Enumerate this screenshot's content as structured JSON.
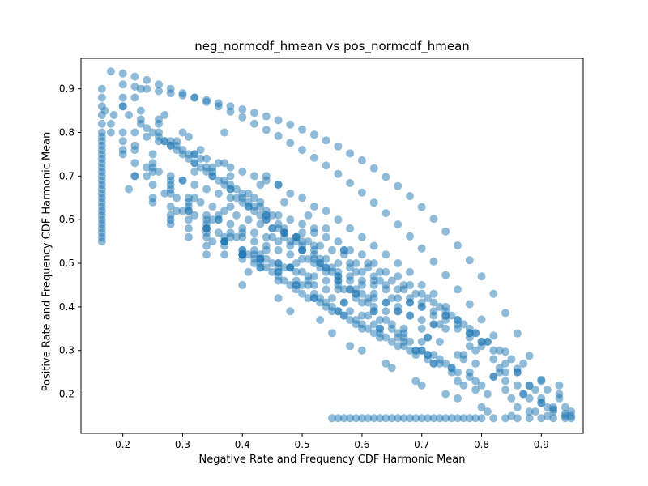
{
  "chart_data": {
    "type": "scatter",
    "title": "neg_normcdf_hmean vs pos_normcdf_hmean",
    "xlabel": "Negative Rate and Frequency CDF Harmonic Mean",
    "ylabel": "Positive Rate and Frequency CDF Harmonic Mean",
    "xlim": [
      0.13,
      0.97
    ],
    "ylim": [
      0.11,
      0.97
    ],
    "xticks": [
      0.2,
      0.3,
      0.4,
      0.5,
      0.6,
      0.7,
      0.8,
      0.9
    ],
    "yticks": [
      0.2,
      0.3,
      0.4,
      0.5,
      0.6,
      0.7,
      0.8,
      0.9
    ],
    "grid": false,
    "marker_color": "#1f77b4",
    "marker_alpha": 0.5,
    "x": [
      0.165,
      0.165,
      0.165,
      0.165,
      0.165,
      0.165,
      0.165,
      0.165,
      0.165,
      0.165,
      0.165,
      0.165,
      0.165,
      0.165,
      0.165,
      0.165,
      0.165,
      0.165,
      0.165,
      0.165,
      0.165,
      0.165,
      0.165,
      0.165,
      0.165,
      0.165,
      0.165,
      0.165,
      0.165,
      0.165,
      0.165,
      0.18,
      0.2,
      0.22,
      0.24,
      0.26,
      0.28,
      0.3,
      0.32,
      0.34,
      0.36,
      0.38,
      0.4,
      0.42,
      0.44,
      0.46,
      0.48,
      0.5,
      0.52,
      0.54,
      0.56,
      0.58,
      0.6,
      0.62,
      0.64,
      0.66,
      0.68,
      0.7,
      0.72,
      0.74,
      0.76,
      0.78,
      0.8,
      0.82,
      0.84,
      0.86,
      0.88,
      0.9,
      0.92,
      0.94,
      0.95,
      0.55,
      0.56,
      0.57,
      0.58,
      0.59,
      0.6,
      0.61,
      0.62,
      0.63,
      0.64,
      0.65,
      0.66,
      0.67,
      0.68,
      0.69,
      0.7,
      0.71,
      0.72,
      0.73,
      0.74,
      0.75,
      0.76,
      0.77,
      0.78,
      0.79,
      0.8,
      0.82,
      0.84,
      0.86,
      0.88,
      0.9,
      0.92,
      0.94,
      0.95,
      0.185,
      0.2,
      0.22,
      0.25,
      0.28,
      0.31,
      0.34,
      0.37,
      0.4,
      0.42,
      0.17,
      0.18,
      0.2,
      0.22,
      0.25,
      0.28,
      0.31,
      0.34,
      0.37,
      0.4,
      0.43,
      0.45,
      0.18,
      0.2,
      0.22,
      0.25,
      0.28,
      0.31,
      0.34,
      0.37,
      0.4,
      0.43,
      0.46,
      0.48,
      0.2,
      0.22,
      0.25,
      0.28,
      0.31,
      0.34,
      0.37,
      0.4,
      0.43,
      0.46,
      0.49,
      0.51,
      0.22,
      0.25,
      0.28,
      0.31,
      0.34,
      0.37,
      0.4,
      0.43,
      0.46,
      0.49,
      0.52,
      0.54,
      0.25,
      0.28,
      0.31,
      0.34,
      0.37,
      0.4,
      0.43,
      0.46,
      0.49,
      0.52,
      0.55,
      0.57,
      0.28,
      0.31,
      0.34,
      0.37,
      0.4,
      0.43,
      0.46,
      0.49,
      0.52,
      0.55,
      0.58,
      0.6,
      0.32,
      0.35,
      0.38,
      0.41,
      0.44,
      0.47,
      0.5,
      0.53,
      0.56,
      0.59,
      0.62,
      0.63,
      0.36,
      0.39,
      0.42,
      0.45,
      0.48,
      0.51,
      0.54,
      0.57,
      0.6,
      0.63,
      0.66,
      0.67,
      0.4,
      0.43,
      0.46,
      0.49,
      0.52,
      0.55,
      0.58,
      0.61,
      0.64,
      0.67,
      0.7,
      0.71,
      0.44,
      0.47,
      0.5,
      0.53,
      0.56,
      0.59,
      0.62,
      0.65,
      0.68,
      0.71,
      0.74,
      0.75,
      0.48,
      0.51,
      0.54,
      0.57,
      0.6,
      0.63,
      0.66,
      0.69,
      0.72,
      0.75,
      0.78,
      0.79,
      0.2,
      0.23,
      0.26,
      0.29,
      0.32,
      0.35,
      0.38,
      0.41,
      0.44,
      0.47,
      0.5,
      0.53,
      0.56,
      0.59,
      0.62,
      0.2,
      0.23,
      0.26,
      0.29,
      0.32,
      0.35,
      0.38,
      0.41,
      0.44,
      0.47,
      0.5,
      0.53,
      0.56,
      0.59,
      0.62,
      0.65,
      0.21,
      0.24,
      0.27,
      0.3,
      0.33,
      0.36,
      0.39,
      0.42,
      0.45,
      0.48,
      0.51,
      0.54,
      0.57,
      0.6,
      0.63,
      0.66,
      0.69,
      0.23,
      0.26,
      0.29,
      0.32,
      0.35,
      0.38,
      0.41,
      0.44,
      0.47,
      0.5,
      0.53,
      0.56,
      0.59,
      0.62,
      0.65,
      0.68,
      0.71,
      0.72,
      0.25,
      0.28,
      0.31,
      0.34,
      0.37,
      0.4,
      0.43,
      0.46,
      0.49,
      0.52,
      0.55,
      0.58,
      0.61,
      0.64,
      0.67,
      0.7,
      0.73,
      0.76,
      0.77,
      0.28,
      0.31,
      0.34,
      0.37,
      0.4,
      0.43,
      0.46,
      0.49,
      0.52,
      0.55,
      0.58,
      0.61,
      0.64,
      0.67,
      0.7,
      0.73,
      0.76,
      0.79,
      0.81,
      0.2,
      0.22,
      0.24,
      0.26,
      0.28,
      0.3,
      0.32,
      0.34,
      0.36,
      0.38,
      0.4,
      0.42,
      0.44,
      0.46,
      0.48,
      0.5,
      0.52,
      0.54,
      0.56,
      0.58,
      0.6,
      0.62,
      0.64,
      0.66,
      0.68,
      0.7,
      0.72,
      0.74,
      0.76,
      0.78,
      0.8,
      0.82,
      0.84,
      0.86,
      0.88,
      0.9,
      0.22,
      0.24,
      0.26,
      0.28,
      0.3,
      0.32,
      0.34,
      0.36,
      0.38,
      0.4,
      0.42,
      0.44,
      0.46,
      0.48,
      0.5,
      0.52,
      0.54,
      0.56,
      0.58,
      0.6,
      0.62,
      0.64,
      0.66,
      0.68,
      0.7,
      0.72,
      0.74,
      0.76,
      0.78,
      0.8,
      0.82,
      0.84,
      0.86,
      0.88,
      0.24,
      0.26,
      0.28,
      0.3,
      0.32,
      0.34,
      0.36,
      0.38,
      0.4,
      0.42,
      0.44,
      0.46,
      0.48,
      0.5,
      0.52,
      0.54,
      0.56,
      0.58,
      0.6,
      0.62,
      0.64,
      0.66,
      0.68,
      0.7,
      0.72,
      0.74,
      0.76,
      0.78,
      0.8,
      0.82,
      0.84,
      0.86,
      0.27,
      0.29,
      0.31,
      0.33,
      0.35,
      0.37,
      0.39,
      0.41,
      0.43,
      0.45,
      0.47,
      0.49,
      0.51,
      0.53,
      0.55,
      0.57,
      0.59,
      0.61,
      0.63,
      0.65,
      0.67,
      0.69,
      0.71,
      0.73,
      0.75,
      0.77,
      0.79,
      0.81,
      0.83,
      0.3,
      0.32,
      0.34,
      0.36,
      0.38,
      0.4,
      0.42,
      0.44,
      0.46,
      0.48,
      0.5,
      0.52,
      0.54,
      0.56,
      0.58,
      0.6,
      0.62,
      0.64,
      0.66,
      0.68,
      0.7,
      0.72,
      0.74,
      0.76,
      0.78,
      0.8,
      0.34,
      0.36,
      0.38,
      0.4,
      0.42,
      0.44,
      0.46,
      0.48,
      0.5,
      0.52,
      0.54,
      0.56,
      0.58,
      0.6,
      0.62,
      0.64,
      0.66,
      0.68,
      0.7,
      0.72,
      0.74,
      0.76,
      0.78,
      0.4,
      0.42,
      0.44,
      0.46,
      0.48,
      0.5,
      0.52,
      0.54,
      0.56,
      0.58,
      0.6,
      0.62,
      0.64,
      0.66,
      0.68,
      0.7,
      0.72,
      0.74,
      0.2,
      0.26,
      0.31,
      0.37,
      0.43,
      0.47,
      0.52,
      0.57,
      0.62,
      0.68,
      0.73,
      0.79,
      0.83,
      0.88,
      0.93,
      0.23,
      0.33,
      0.39,
      0.44,
      0.5,
      0.54,
      0.59,
      0.66,
      0.71,
      0.77,
      0.82,
      0.87,
      0.91,
      0.24,
      0.29,
      0.35,
      0.41,
      0.46,
      0.53,
      0.58,
      0.64,
      0.69,
      0.74,
      0.8,
      0.85,
      0.89,
      0.94,
      0.27,
      0.32,
      0.38,
      0.45,
      0.49,
      0.56,
      0.61,
      0.67,
      0.72,
      0.78,
      0.84,
      0.9,
      0.92,
      0.21,
      0.28,
      0.34,
      0.4,
      0.48,
      0.55,
      0.6,
      0.65,
      0.7,
      0.76,
      0.81,
      0.86,
      0.91,
      0.25,
      0.3,
      0.36,
      0.42,
      0.51,
      0.57,
      0.63,
      0.69,
      0.75,
      0.8,
      0.85,
      0.88,
      0.93,
      0.22,
      0.35,
      0.43,
      0.5,
      0.58,
      0.62,
      0.68,
      0.73,
      0.79,
      0.84,
      0.9,
      0.95,
      0.3,
      0.41,
      0.47,
      0.53,
      0.6,
      0.66,
      0.71,
      0.77,
      0.82,
      0.87,
      0.92,
      0.27,
      0.38,
      0.45,
      0.52,
      0.56,
      0.64,
      0.7,
      0.76,
      0.83,
      0.89,
      0.94,
      0.33,
      0.42,
      0.49,
      0.59,
      0.65,
      0.72,
      0.78,
      0.86,
      0.91,
      0.37,
      0.46,
      0.54,
      0.61,
      0.67,
      0.74,
      0.81,
      0.87,
      0.93,
      0.44,
      0.51,
      0.57,
      0.63,
      0.7,
      0.79,
      0.85,
      0.9
    ],
    "y": [
      0.55,
      0.56,
      0.57,
      0.58,
      0.59,
      0.6,
      0.61,
      0.62,
      0.63,
      0.64,
      0.65,
      0.66,
      0.67,
      0.68,
      0.69,
      0.7,
      0.71,
      0.72,
      0.73,
      0.74,
      0.75,
      0.76,
      0.77,
      0.78,
      0.79,
      0.8,
      0.82,
      0.84,
      0.86,
      0.88,
      0.9,
      0.94,
      0.935,
      0.928,
      0.92,
      0.91,
      0.9,
      0.89,
      0.88,
      0.87,
      0.86,
      0.848,
      0.835,
      0.82,
      0.806,
      0.792,
      0.776,
      0.76,
      0.742,
      0.724,
      0.705,
      0.684,
      0.662,
      0.639,
      0.615,
      0.589,
      0.562,
      0.534,
      0.504,
      0.473,
      0.44,
      0.406,
      0.371,
      0.334,
      0.297,
      0.258,
      0.219,
      0.18,
      0.165,
      0.155,
      0.15,
      0.145,
      0.145,
      0.145,
      0.145,
      0.145,
      0.145,
      0.145,
      0.145,
      0.145,
      0.145,
      0.145,
      0.145,
      0.145,
      0.145,
      0.145,
      0.145,
      0.145,
      0.145,
      0.145,
      0.145,
      0.145,
      0.145,
      0.145,
      0.145,
      0.145,
      0.145,
      0.145,
      0.145,
      0.145,
      0.145,
      0.145,
      0.145,
      0.145,
      0.145,
      0.84,
      0.76,
      0.7,
      0.64,
      0.6,
      0.56,
      0.54,
      0.52,
      0.51,
      0.5,
      0.85,
      0.8,
      0.75,
      0.7,
      0.65,
      0.61,
      0.58,
      0.56,
      0.54,
      0.52,
      0.51,
      0.5,
      0.82,
      0.78,
      0.73,
      0.68,
      0.63,
      0.6,
      0.57,
      0.55,
      0.53,
      0.51,
      0.5,
      0.49,
      0.8,
      0.76,
      0.71,
      0.66,
      0.62,
      0.58,
      0.55,
      0.53,
      0.51,
      0.49,
      0.48,
      0.47,
      0.77,
      0.72,
      0.67,
      0.62,
      0.58,
      0.55,
      0.52,
      0.5,
      0.48,
      0.46,
      0.45,
      0.44,
      0.73,
      0.68,
      0.63,
      0.59,
      0.55,
      0.52,
      0.49,
      0.47,
      0.45,
      0.43,
      0.42,
      0.41,
      0.69,
      0.64,
      0.6,
      0.56,
      0.52,
      0.49,
      0.46,
      0.44,
      0.42,
      0.4,
      0.39,
      0.38,
      0.65,
      0.6,
      0.56,
      0.52,
      0.49,
      0.46,
      0.43,
      0.41,
      0.39,
      0.37,
      0.36,
      0.35,
      0.61,
      0.56,
      0.52,
      0.48,
      0.45,
      0.42,
      0.4,
      0.38,
      0.36,
      0.34,
      0.33,
      0.32,
      0.57,
      0.52,
      0.48,
      0.45,
      0.42,
      0.39,
      0.37,
      0.35,
      0.33,
      0.31,
      0.3,
      0.29,
      0.53,
      0.49,
      0.45,
      0.42,
      0.39,
      0.36,
      0.34,
      0.32,
      0.3,
      0.28,
      0.27,
      0.26,
      0.49,
      0.45,
      0.41,
      0.38,
      0.35,
      0.33,
      0.31,
      0.29,
      0.27,
      0.25,
      0.24,
      0.23,
      0.88,
      0.85,
      0.82,
      0.78,
      0.75,
      0.71,
      0.68,
      0.64,
      0.61,
      0.57,
      0.54,
      0.5,
      0.47,
      0.43,
      0.4,
      0.86,
      0.83,
      0.8,
      0.77,
      0.73,
      0.7,
      0.67,
      0.63,
      0.6,
      0.56,
      0.53,
      0.49,
      0.46,
      0.42,
      0.39,
      0.35,
      0.84,
      0.81,
      0.78,
      0.75,
      0.72,
      0.69,
      0.65,
      0.62,
      0.58,
      0.55,
      0.51,
      0.48,
      0.44,
      0.41,
      0.37,
      0.34,
      0.3,
      0.82,
      0.79,
      0.76,
      0.73,
      0.7,
      0.67,
      0.63,
      0.6,
      0.57,
      0.53,
      0.5,
      0.46,
      0.43,
      0.39,
      0.36,
      0.32,
      0.29,
      0.27,
      0.8,
      0.77,
      0.74,
      0.71,
      0.68,
      0.65,
      0.61,
      0.58,
      0.55,
      0.51,
      0.48,
      0.44,
      0.41,
      0.37,
      0.34,
      0.3,
      0.27,
      0.23,
      0.22,
      0.78,
      0.75,
      0.72,
      0.69,
      0.66,
      0.63,
      0.59,
      0.56,
      0.53,
      0.49,
      0.46,
      0.42,
      0.39,
      0.35,
      0.32,
      0.28,
      0.25,
      0.21,
      0.2,
      0.91,
      0.905,
      0.9,
      0.895,
      0.89,
      0.885,
      0.88,
      0.874,
      0.867,
      0.86,
      0.853,
      0.845,
      0.837,
      0.828,
      0.818,
      0.807,
      0.795,
      0.782,
      0.768,
      0.752,
      0.736,
      0.718,
      0.698,
      0.677,
      0.654,
      0.629,
      0.602,
      0.573,
      0.541,
      0.507,
      0.47,
      0.43,
      0.386,
      0.339,
      0.288,
      0.233,
      0.8,
      0.79,
      0.78,
      0.77,
      0.76,
      0.75,
      0.74,
      0.73,
      0.72,
      0.71,
      0.7,
      0.69,
      0.68,
      0.66,
      0.65,
      0.63,
      0.62,
      0.6,
      0.58,
      0.56,
      0.54,
      0.52,
      0.5,
      0.48,
      0.45,
      0.43,
      0.4,
      0.37,
      0.34,
      0.31,
      0.28,
      0.25,
      0.22,
      0.19,
      0.72,
      0.71,
      0.7,
      0.69,
      0.68,
      0.67,
      0.66,
      0.65,
      0.64,
      0.63,
      0.62,
      0.61,
      0.6,
      0.59,
      0.57,
      0.56,
      0.55,
      0.53,
      0.52,
      0.5,
      0.48,
      0.47,
      0.45,
      0.43,
      0.41,
      0.39,
      0.37,
      0.35,
      0.32,
      0.3,
      0.27,
      0.25,
      0.66,
      0.65,
      0.65,
      0.64,
      0.63,
      0.62,
      0.61,
      0.6,
      0.59,
      0.58,
      0.57,
      0.56,
      0.55,
      0.54,
      0.53,
      0.52,
      0.5,
      0.49,
      0.48,
      0.46,
      0.45,
      0.43,
      0.42,
      0.4,
      0.38,
      0.36,
      0.34,
      0.32,
      0.3,
      0.62,
      0.61,
      0.61,
      0.6,
      0.59,
      0.58,
      0.57,
      0.56,
      0.55,
      0.54,
      0.53,
      0.52,
      0.51,
      0.5,
      0.49,
      0.48,
      0.46,
      0.45,
      0.44,
      0.42,
      0.41,
      0.39,
      0.38,
      0.36,
      0.34,
      0.32,
      0.58,
      0.57,
      0.57,
      0.56,
      0.55,
      0.54,
      0.53,
      0.52,
      0.51,
      0.5,
      0.49,
      0.48,
      0.47,
      0.46,
      0.45,
      0.44,
      0.42,
      0.41,
      0.4,
      0.38,
      0.37,
      0.35,
      0.33,
      0.52,
      0.51,
      0.51,
      0.5,
      0.49,
      0.48,
      0.47,
      0.46,
      0.45,
      0.44,
      0.43,
      0.42,
      0.41,
      0.4,
      0.38,
      0.37,
      0.36,
      0.35,
      0.86,
      0.83,
      0.79,
      0.73,
      0.68,
      0.64,
      0.58,
      0.53,
      0.47,
      0.41,
      0.36,
      0.3,
      0.26,
      0.22,
      0.19,
      0.9,
      0.76,
      0.67,
      0.61,
      0.55,
      0.49,
      0.44,
      0.39,
      0.33,
      0.28,
      0.24,
      0.2,
      0.17,
      0.7,
      0.62,
      0.55,
      0.48,
      0.42,
      0.37,
      0.31,
      0.27,
      0.23,
      0.2,
      0.17,
      0.15,
      0.16,
      0.15,
      0.78,
      0.71,
      0.63,
      0.56,
      0.5,
      0.44,
      0.38,
      0.33,
      0.29,
      0.25,
      0.21,
      0.18,
      0.16,
      0.67,
      0.59,
      0.52,
      0.45,
      0.39,
      0.34,
      0.3,
      0.26,
      0.22,
      0.19,
      0.16,
      0.17,
      0.15,
      0.75,
      0.69,
      0.6,
      0.53,
      0.46,
      0.41,
      0.35,
      0.3,
      0.26,
      0.22,
      0.19,
      0.16,
      0.2,
      0.88,
      0.72,
      0.64,
      0.57,
      0.5,
      0.43,
      0.38,
      0.32,
      0.27,
      0.23,
      0.19,
      0.16,
      0.8,
      0.66,
      0.58,
      0.51,
      0.45,
      0.39,
      0.33,
      0.29,
      0.24,
      0.2,
      0.17,
      0.84,
      0.7,
      0.61,
      0.54,
      0.47,
      0.41,
      0.35,
      0.29,
      0.25,
      0.21,
      0.17,
      0.74,
      0.65,
      0.56,
      0.48,
      0.42,
      0.36,
      0.31,
      0.25,
      0.21,
      0.8,
      0.68,
      0.58,
      0.5,
      0.44,
      0.38,
      0.32,
      0.27,
      0.22,
      0.7,
      0.61,
      0.53,
      0.46,
      0.4,
      0.34,
      0.28,
      0.23
    ]
  }
}
